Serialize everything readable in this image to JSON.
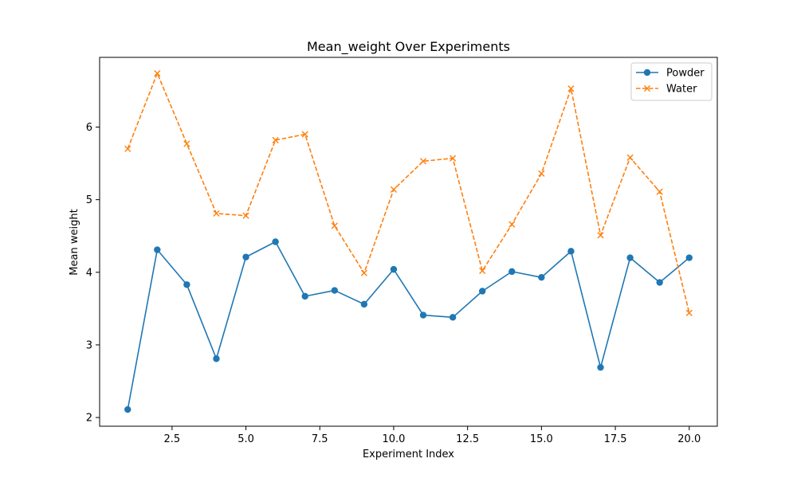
{
  "chart_data": {
    "type": "line",
    "title": "Mean_weight Over Experiments",
    "xlabel": "Experiment Index",
    "ylabel": "Mean weight",
    "xlim": [
      0.05,
      20.95
    ],
    "ylim": [
      1.88,
      6.96
    ],
    "xticks": [
      2.5,
      5.0,
      7.5,
      10.0,
      12.5,
      15.0,
      17.5,
      20.0
    ],
    "xtick_labels": [
      "2.5",
      "5.0",
      "7.5",
      "10.0",
      "12.5",
      "15.0",
      "17.5",
      "20.0"
    ],
    "yticks": [
      2,
      3,
      4,
      5,
      6
    ],
    "ytick_labels": [
      "2",
      "3",
      "4",
      "5",
      "6"
    ],
    "grid": false,
    "legend_position": "top-right",
    "x": [
      1,
      2,
      3,
      4,
      5,
      6,
      7,
      8,
      9,
      10,
      11,
      12,
      13,
      14,
      15,
      16,
      17,
      18,
      19,
      20
    ],
    "series": [
      {
        "name": "Powder",
        "color": "#1f77b4",
        "marker": "circle",
        "line_style": "solid",
        "values": [
          2.11,
          4.31,
          3.83,
          2.81,
          4.21,
          4.42,
          3.67,
          3.75,
          3.56,
          4.04,
          3.41,
          3.38,
          3.74,
          4.01,
          3.93,
          4.29,
          2.69,
          4.2,
          3.86,
          4.2
        ]
      },
      {
        "name": "Water",
        "color": "#ff7f0e",
        "marker": "x",
        "line_style": "dashed",
        "values": [
          5.7,
          6.74,
          5.77,
          4.81,
          4.78,
          5.82,
          5.9,
          4.64,
          3.99,
          5.14,
          5.53,
          5.57,
          4.02,
          4.66,
          5.36,
          6.53,
          4.51,
          5.58,
          5.11,
          3.44
        ]
      }
    ]
  }
}
